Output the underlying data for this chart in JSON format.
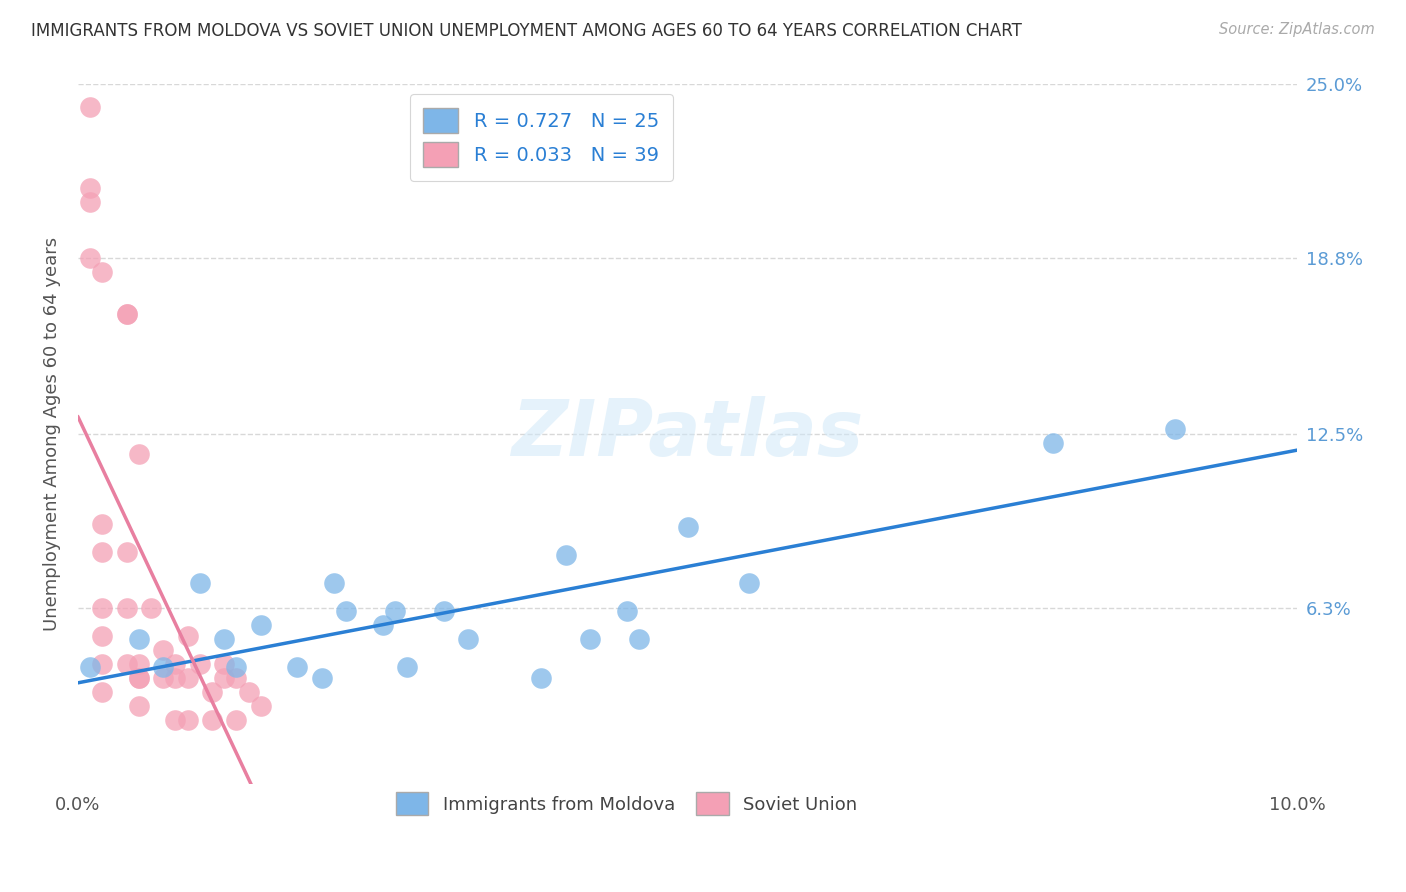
{
  "title": "IMMIGRANTS FROM MOLDOVA VS SOVIET UNION UNEMPLOYMENT AMONG AGES 60 TO 64 YEARS CORRELATION CHART",
  "source": "Source: ZipAtlas.com",
  "ylabel": "Unemployment Among Ages 60 to 64 years",
  "xlim": [
    0.0,
    0.1
  ],
  "ylim": [
    0.0,
    0.25
  ],
  "xtick_positions": [
    0.0,
    0.02,
    0.04,
    0.06,
    0.08,
    0.1
  ],
  "xtick_labels": [
    "0.0%",
    "",
    "",
    "",
    "",
    "10.0%"
  ],
  "ytick_labels_right": [
    "25.0%",
    "18.8%",
    "12.5%",
    "6.3%"
  ],
  "ytick_values_right": [
    0.25,
    0.188,
    0.125,
    0.063
  ],
  "watermark": "ZIPatlas",
  "moldova_color": "#7eb6e8",
  "soviet_color": "#f4a0b5",
  "moldova_line_color": "#2a7fd4",
  "soviet_line_solid_color": "#e87fa0",
  "soviet_line_dashed_color": "#d4a0b8",
  "moldova_R": 0.727,
  "moldova_N": 25,
  "soviet_R": 0.033,
  "soviet_N": 39,
  "moldova_scatter_x": [
    0.001,
    0.005,
    0.007,
    0.01,
    0.012,
    0.013,
    0.015,
    0.018,
    0.02,
    0.021,
    0.022,
    0.025,
    0.026,
    0.027,
    0.03,
    0.032,
    0.038,
    0.04,
    0.042,
    0.045,
    0.046,
    0.05,
    0.055,
    0.08,
    0.09
  ],
  "moldova_scatter_y": [
    0.042,
    0.052,
    0.042,
    0.072,
    0.052,
    0.042,
    0.057,
    0.042,
    0.038,
    0.072,
    0.062,
    0.057,
    0.062,
    0.042,
    0.062,
    0.052,
    0.038,
    0.082,
    0.052,
    0.062,
    0.052,
    0.092,
    0.072,
    0.122,
    0.127
  ],
  "soviet_scatter_x": [
    0.001,
    0.001,
    0.001,
    0.001,
    0.002,
    0.002,
    0.002,
    0.002,
    0.002,
    0.002,
    0.002,
    0.004,
    0.004,
    0.004,
    0.004,
    0.004,
    0.005,
    0.005,
    0.005,
    0.005,
    0.005,
    0.006,
    0.007,
    0.007,
    0.008,
    0.008,
    0.008,
    0.009,
    0.009,
    0.009,
    0.01,
    0.011,
    0.011,
    0.012,
    0.012,
    0.013,
    0.013,
    0.014,
    0.015
  ],
  "soviet_scatter_y": [
    0.242,
    0.213,
    0.208,
    0.188,
    0.183,
    0.093,
    0.083,
    0.063,
    0.053,
    0.043,
    0.033,
    0.168,
    0.168,
    0.083,
    0.063,
    0.043,
    0.038,
    0.118,
    0.043,
    0.038,
    0.028,
    0.063,
    0.048,
    0.038,
    0.043,
    0.038,
    0.023,
    0.053,
    0.038,
    0.023,
    0.043,
    0.033,
    0.023,
    0.043,
    0.038,
    0.038,
    0.023,
    0.033,
    0.028
  ],
  "background_color": "#ffffff",
  "grid_color": "#d8d8d8",
  "title_color": "#333333",
  "axis_label_color": "#555555",
  "tick_color_right": "#5b9bd5"
}
